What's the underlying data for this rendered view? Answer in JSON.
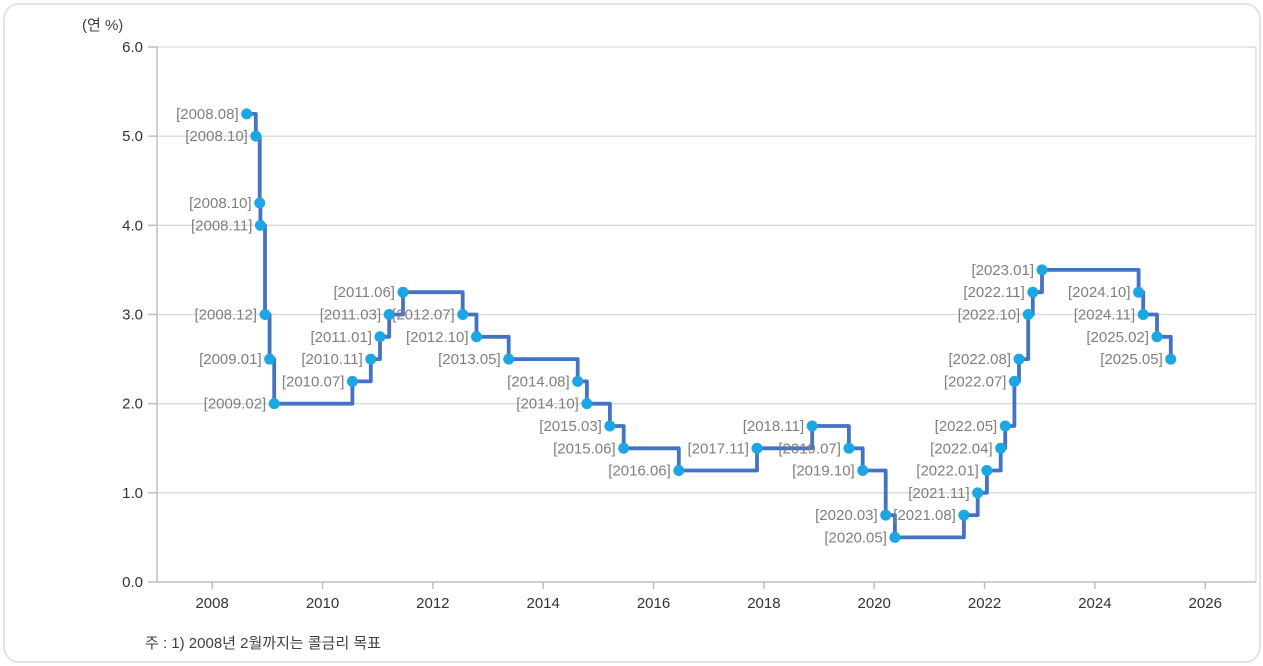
{
  "chart_data": {
    "type": "line",
    "subtype": "step-after",
    "title": "",
    "unit_label": "(연 %)",
    "note": "주 : 1) 2008년 2월까지는 콜금리 목표",
    "xlabel": "",
    "ylabel": "연 %",
    "xlim": [
      2007.0,
      2026.92
    ],
    "ylim": [
      0.0,
      6.0
    ],
    "ytick_values": [
      0,
      1,
      2,
      3,
      4,
      5,
      6
    ],
    "ytick_labels": [
      "0.0",
      "1.0",
      "2.0",
      "3.0",
      "4.0",
      "5.0",
      "6.0"
    ],
    "xtick_values": [
      2008,
      2010,
      2012,
      2014,
      2016,
      2018,
      2020,
      2022,
      2024,
      2026
    ],
    "xtick_labels": [
      "2008",
      "2010",
      "2012",
      "2014",
      "2016",
      "2018",
      "2020",
      "2022",
      "2024",
      "2026"
    ],
    "grid": "horizontal",
    "legend": "none",
    "points": [
      {
        "label": "[2008.08]",
        "date": "2008.08",
        "value": 5.25
      },
      {
        "label": "[2008.10]",
        "date": "2008.10",
        "value": 5.0
      },
      {
        "label": "[2008.10]",
        "date": "2008.10",
        "value": 4.25
      },
      {
        "label": "[2008.11]",
        "date": "2008.11",
        "value": 4.0
      },
      {
        "label": "[2008.12]",
        "date": "2008.12",
        "value": 3.0
      },
      {
        "label": "[2009.01]",
        "date": "2009.01",
        "value": 2.5
      },
      {
        "label": "[2009.02]",
        "date": "2009.02",
        "value": 2.0
      },
      {
        "label": "[2010.07]",
        "date": "2010.07",
        "value": 2.25
      },
      {
        "label": "[2010.11]",
        "date": "2010.11",
        "value": 2.5
      },
      {
        "label": "[2011.01]",
        "date": "2011.01",
        "value": 2.75
      },
      {
        "label": "[2011.03]",
        "date": "2011.03",
        "value": 3.0
      },
      {
        "label": "[2011.06]",
        "date": "2011.06",
        "value": 3.25
      },
      {
        "label": "[2012.07]",
        "date": "2012.07",
        "value": 3.0
      },
      {
        "label": "[2012.10]",
        "date": "2012.10",
        "value": 2.75
      },
      {
        "label": "[2013.05]",
        "date": "2013.05",
        "value": 2.5
      },
      {
        "label": "[2014.08]",
        "date": "2014.08",
        "value": 2.25
      },
      {
        "label": "[2014.10]",
        "date": "2014.10",
        "value": 2.0
      },
      {
        "label": "[2015.03]",
        "date": "2015.03",
        "value": 1.75
      },
      {
        "label": "[2015.06]",
        "date": "2015.06",
        "value": 1.5
      },
      {
        "label": "[2016.06]",
        "date": "2016.06",
        "value": 1.25
      },
      {
        "label": "[2017.11]",
        "date": "2017.11",
        "value": 1.5
      },
      {
        "label": "[2018.11]",
        "date": "2018.11",
        "value": 1.75
      },
      {
        "label": "[2019.07]",
        "date": "2019.07",
        "value": 1.5
      },
      {
        "label": "[2019.10]",
        "date": "2019.10",
        "value": 1.25
      },
      {
        "label": "[2020.03]",
        "date": "2020.03",
        "value": 0.75
      },
      {
        "label": "[2020.05]",
        "date": "2020.05",
        "value": 0.5
      },
      {
        "label": "[2021.08]",
        "date": "2021.08",
        "value": 0.75
      },
      {
        "label": "[2021.11]",
        "date": "2021.11",
        "value": 1.0
      },
      {
        "label": "[2022.01]",
        "date": "2022.01",
        "value": 1.25
      },
      {
        "label": "[2022.04]",
        "date": "2022.04",
        "value": 1.5
      },
      {
        "label": "[2022.05]",
        "date": "2022.05",
        "value": 1.75
      },
      {
        "label": "[2022.07]",
        "date": "2022.07",
        "value": 2.25
      },
      {
        "label": "[2022.08]",
        "date": "2022.08",
        "value": 2.5
      },
      {
        "label": "[2022.10]",
        "date": "2022.10",
        "value": 3.0
      },
      {
        "label": "[2022.11]",
        "date": "2022.11",
        "value": 3.25
      },
      {
        "label": "[2023.01]",
        "date": "2023.01",
        "value": 3.5
      },
      {
        "label": "[2024.10]",
        "date": "2024.10",
        "value": 3.25
      },
      {
        "label": "[2024.11]",
        "date": "2024.11",
        "value": 3.0
      },
      {
        "label": "[2025.02]",
        "date": "2025.02",
        "value": 2.75
      },
      {
        "label": "[2025.05]",
        "date": "2025.05",
        "value": 2.5
      }
    ],
    "colors": {
      "line": "#4472c4",
      "marker": "#1ba7e4",
      "grid": "#d9d9d9",
      "axis": "#bfbfbf",
      "tick_label": "#333333",
      "data_label": "#7f7f7f",
      "card_border": "#e2e2e8"
    }
  }
}
